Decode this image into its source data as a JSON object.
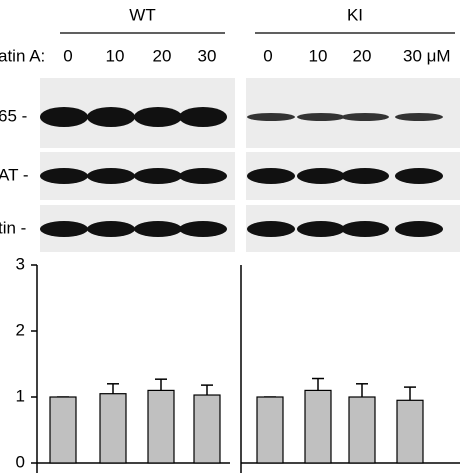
{
  "blot": {
    "groups": [
      "WT",
      "KI"
    ],
    "treatment": "atin A:",
    "doses": [
      [
        "0",
        "10",
        "20",
        "30"
      ],
      [
        "0",
        "10",
        "20",
        "30 μM"
      ]
    ],
    "rows": [
      "65 -",
      "AT -",
      "tin -"
    ]
  },
  "chart_data": [
    {
      "type": "bar",
      "values": [
        1,
        1.05,
        1.1,
        1.03
      ],
      "errors": [
        0,
        0.15,
        0.17,
        0.15
      ],
      "color": "#c0c0c0",
      "ylim": [
        0,
        3
      ],
      "yticks": [
        0,
        1,
        2,
        3
      ]
    },
    {
      "type": "bar",
      "values": [
        1,
        1.1,
        1.0,
        0.95
      ],
      "errors": [
        0,
        0.18,
        0.2,
        0.2
      ],
      "color": "#c0c0c0",
      "ylim": [
        0,
        3
      ]
    }
  ]
}
